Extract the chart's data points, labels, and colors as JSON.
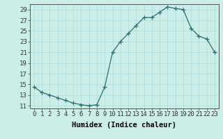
{
  "x": [
    0,
    1,
    2,
    3,
    4,
    5,
    6,
    7,
    8,
    9,
    10,
    11,
    12,
    13,
    14,
    15,
    16,
    17,
    18,
    19,
    20,
    21,
    22,
    23
  ],
  "y": [
    14.5,
    13.5,
    13.0,
    12.5,
    12.0,
    11.5,
    11.2,
    11.0,
    11.2,
    14.5,
    21.0,
    23.0,
    24.5,
    26.0,
    27.5,
    27.5,
    28.5,
    29.5,
    29.2,
    29.0,
    25.5,
    24.0,
    23.5,
    21.0
  ],
  "line_color": "#2e6e6e",
  "marker": "+",
  "marker_size": 4,
  "bg_color": "#cceee8",
  "grid_color": "#aaddda",
  "xlabel": "Humidex (Indice chaleur)",
  "xlim": [
    -0.5,
    23.5
  ],
  "ylim": [
    10.5,
    30
  ],
  "yticks": [
    11,
    13,
    15,
    17,
    19,
    21,
    23,
    25,
    27,
    29
  ],
  "xticks": [
    0,
    1,
    2,
    3,
    4,
    5,
    6,
    7,
    8,
    9,
    10,
    11,
    12,
    13,
    14,
    15,
    16,
    17,
    18,
    19,
    20,
    21,
    22,
    23
  ],
  "label_fontsize": 7.5,
  "tick_fontsize": 6.5
}
